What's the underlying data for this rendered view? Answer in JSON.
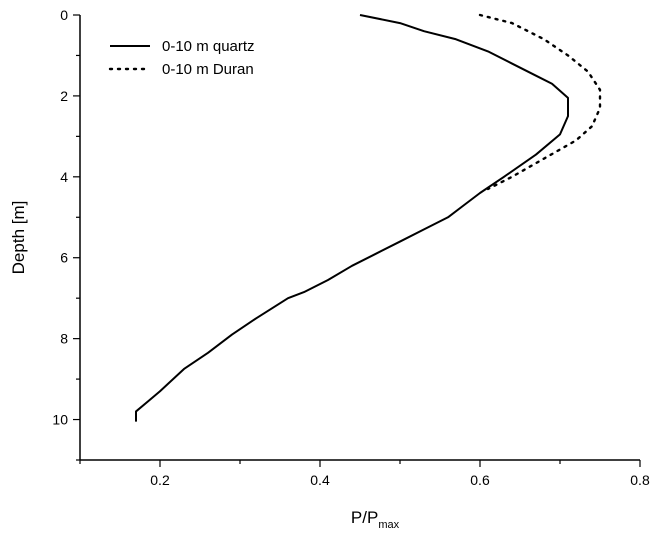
{
  "chart_data": {
    "type": "line",
    "title": "",
    "xlabel": "P/P",
    "xlabel_sub": "max",
    "ylabel": "Depth [m]",
    "xlim": [
      0.1,
      0.8
    ],
    "ylim": [
      11,
      0
    ],
    "y_inverted": true,
    "grid": false,
    "legend_position": "top-left",
    "x_ticks": [
      0.2,
      0.4,
      0.6,
      0.8
    ],
    "x_tick_labels": [
      "0.2",
      "0.4",
      "0.6",
      "0.8"
    ],
    "y_ticks": [
      0,
      2,
      4,
      6,
      8,
      10
    ],
    "y_tick_labels": [
      "0",
      "2",
      "4",
      "6",
      "8",
      "10"
    ],
    "series": [
      {
        "name": "0-10 m quartz",
        "style": "solid",
        "color": "#000000",
        "points": [
          [
            0.45,
            0.0
          ],
          [
            0.5,
            0.2
          ],
          [
            0.53,
            0.4
          ],
          [
            0.57,
            0.6
          ],
          [
            0.61,
            0.9
          ],
          [
            0.64,
            1.2
          ],
          [
            0.67,
            1.5
          ],
          [
            0.69,
            1.7
          ],
          [
            0.71,
            2.05
          ],
          [
            0.71,
            2.5
          ],
          [
            0.7,
            2.95
          ],
          [
            0.67,
            3.45
          ],
          [
            0.63,
            4.0
          ],
          [
            0.6,
            4.4
          ],
          [
            0.58,
            4.7
          ],
          [
            0.56,
            5.0
          ],
          [
            0.53,
            5.3
          ],
          [
            0.5,
            5.6
          ],
          [
            0.47,
            5.9
          ],
          [
            0.44,
            6.2
          ],
          [
            0.41,
            6.55
          ],
          [
            0.38,
            6.85
          ],
          [
            0.36,
            7.0
          ],
          [
            0.32,
            7.5
          ],
          [
            0.29,
            7.9
          ],
          [
            0.26,
            8.35
          ],
          [
            0.23,
            8.75
          ],
          [
            0.2,
            9.3
          ],
          [
            0.185,
            9.55
          ],
          [
            0.17,
            9.8
          ],
          [
            0.17,
            10.05
          ]
        ]
      },
      {
        "name": "0-10 m Duran",
        "style": "dotted",
        "color": "#000000",
        "points": [
          [
            0.6,
            0.0
          ],
          [
            0.64,
            0.2
          ],
          [
            0.68,
            0.6
          ],
          [
            0.71,
            1.0
          ],
          [
            0.735,
            1.4
          ],
          [
            0.75,
            1.85
          ],
          [
            0.75,
            2.3
          ],
          [
            0.74,
            2.75
          ],
          [
            0.72,
            3.1
          ],
          [
            0.68,
            3.55
          ],
          [
            0.64,
            4.0
          ],
          [
            0.61,
            4.3
          ]
        ]
      }
    ]
  }
}
